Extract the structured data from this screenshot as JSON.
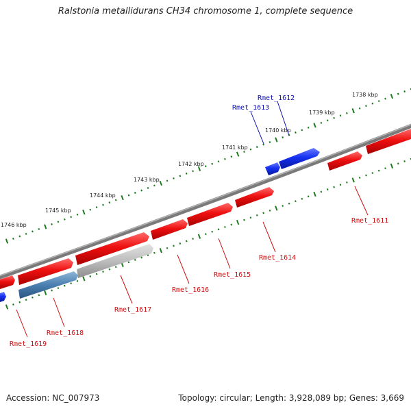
{
  "title": "Ralstonia metallidurans CH34 chromosome 1, complete sequence",
  "footer": {
    "accession": "Accession: NC_007973",
    "summary": "Topology: circular; Length: 3,928,089 bp; Genes: 3,669"
  },
  "colors": {
    "backbone": "#7a7a7a",
    "tick": "#1e7a1e",
    "forward_gene": "#e8141a",
    "reverse_gene": "#1030e0",
    "forward_label": "#cc1010",
    "reverse_label": "#1010b0",
    "pseudo_gene": "#b8b8b8",
    "rna_gene": "#4a7fb0"
  },
  "kbp_labels": [
    "1738 kbp",
    "1739 kbp",
    "1740 kbp",
    "1741 kbp",
    "1742 kbp",
    "1743 kbp",
    "1744 kbp",
    "1745 kbp",
    "1746 kbp"
  ],
  "genes_top": [
    "Rmet_1612",
    "Rmet_1613"
  ],
  "genes_bottom": [
    "Rmet_1611",
    "Rmet_1614",
    "Rmet_1615",
    "Rmet_1616",
    "Rmet_1617",
    "Rmet_1618",
    "Rmet_1619"
  ]
}
